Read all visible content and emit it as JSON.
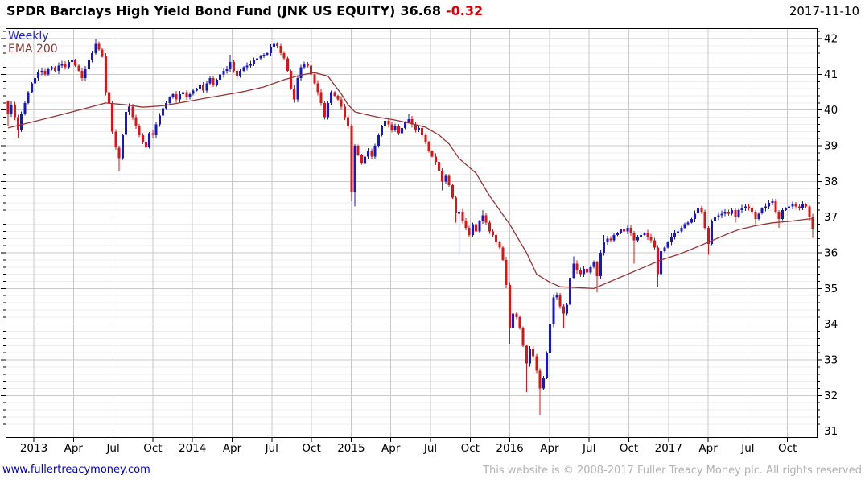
{
  "header": {
    "title": "SPDR Barclays High Yield Bond Fund (JNK US EQUITY)",
    "last_price": "36.68",
    "change": "-0.32",
    "date": "2017-11-10"
  },
  "legend": {
    "timeframe": "Weekly",
    "overlay": "EMA 200"
  },
  "footer": {
    "website": "www.fullertreacymoney.com",
    "copyright": "This website is © 2008-2017 Fuller Treacy Money plc. All rights reserved"
  },
  "chart_data": {
    "type": "candlestick",
    "title": "SPDR Barclays High Yield Bond Fund (JNK US EQUITY)",
    "timeframe": "Weekly",
    "overlay": "EMA 200",
    "as_of_date": "2017-11-10",
    "last_close": 36.68,
    "change": -0.32,
    "y_axis": {
      "min": 31,
      "max": 42,
      "major_step": 1,
      "minor_step": 0.2,
      "side": "right",
      "tick_labels": [
        "31",
        "32",
        "33",
        "34",
        "35",
        "36",
        "37",
        "38",
        "39",
        "40",
        "41",
        "42"
      ]
    },
    "x_axis": {
      "tick_labels": [
        "2013",
        "Apr",
        "Jul",
        "Oct",
        "2014",
        "Apr",
        "Jul",
        "Oct",
        "2015",
        "Apr",
        "Jul",
        "Oct",
        "2016",
        "Apr",
        "Jul",
        "Oct",
        "2017",
        "Apr",
        "Jul",
        "Oct"
      ],
      "range_note": "weekly bars, Nov 2012 - 10 Nov 2017"
    },
    "colors": {
      "up": "#1717c3",
      "down": "#e31212",
      "ema": "#993434",
      "grid_major": "#c9c9c9",
      "grid_minor": "#ededed",
      "axis": "#000000"
    },
    "grid": {
      "horizontal_major": true,
      "horizontal_minor": true,
      "vertical_quarterly": true
    },
    "series": {
      "name": "JNK US EQUITY weekly OHLC (values estimated from chart)",
      "first_open": 40.25,
      "default_wick": 0.07,
      "closes": [
        39.9,
        40.15,
        39.8,
        39.45,
        39.9,
        40.2,
        40.5,
        40.75,
        40.9,
        41.05,
        41.1,
        41.0,
        41.15,
        41.2,
        41.1,
        41.25,
        41.3,
        41.2,
        41.35,
        41.4,
        41.25,
        41.1,
        40.9,
        41.15,
        41.4,
        41.6,
        41.85,
        41.7,
        41.5,
        40.5,
        40.2,
        39.4,
        38.95,
        38.65,
        39.3,
        39.95,
        40.1,
        39.8,
        39.55,
        39.3,
        39.1,
        38.95,
        39.35,
        39.3,
        39.6,
        39.85,
        40.05,
        40.2,
        40.35,
        40.45,
        40.3,
        40.45,
        40.5,
        40.35,
        40.45,
        40.55,
        40.6,
        40.7,
        40.55,
        40.75,
        40.9,
        40.7,
        40.85,
        41.0,
        41.1,
        41.15,
        41.35,
        41.1,
        40.95,
        41.1,
        41.2,
        41.25,
        41.3,
        41.4,
        41.45,
        41.5,
        41.55,
        41.6,
        41.75,
        41.85,
        41.8,
        41.6,
        41.45,
        41.1,
        40.6,
        40.3,
        40.9,
        41.2,
        41.3,
        41.25,
        41.0,
        40.75,
        40.5,
        40.2,
        39.8,
        40.2,
        40.5,
        40.4,
        40.3,
        40.1,
        39.8,
        39.55,
        37.7,
        39.0,
        38.75,
        38.5,
        38.7,
        38.85,
        38.7,
        39.0,
        39.3,
        39.55,
        39.7,
        39.6,
        39.45,
        39.55,
        39.35,
        39.5,
        39.65,
        39.75,
        39.6,
        39.45,
        39.5,
        39.3,
        39.1,
        38.85,
        38.7,
        38.55,
        38.3,
        38.0,
        38.15,
        37.9,
        37.55,
        37.1,
        37.15,
        36.9,
        36.7,
        36.5,
        36.8,
        36.6,
        36.9,
        37.05,
        36.85,
        36.6,
        36.5,
        36.3,
        36.15,
        35.8,
        35.1,
        33.9,
        34.3,
        34.2,
        33.9,
        33.4,
        32.9,
        33.3,
        33.1,
        32.7,
        32.2,
        32.5,
        33.2,
        34.0,
        34.75,
        34.8,
        34.5,
        34.3,
        34.55,
        35.3,
        35.7,
        35.5,
        35.4,
        35.55,
        35.45,
        35.6,
        35.75,
        35.35,
        36.0,
        36.3,
        36.4,
        36.35,
        36.5,
        36.55,
        36.65,
        36.6,
        36.7,
        36.55,
        36.35,
        36.45,
        36.5,
        36.55,
        36.45,
        36.35,
        36.15,
        35.4,
        36.05,
        36.15,
        36.3,
        36.45,
        36.55,
        36.6,
        36.7,
        36.8,
        36.85,
        36.95,
        37.1,
        37.25,
        37.15,
        36.7,
        36.25,
        36.9,
        37.0,
        37.05,
        37.1,
        37.15,
        37.1,
        37.2,
        37.0,
        37.2,
        37.25,
        37.3,
        37.25,
        37.15,
        36.95,
        37.1,
        37.25,
        37.3,
        37.4,
        37.45,
        37.15,
        36.95,
        37.2,
        37.25,
        37.3,
        37.35,
        37.3,
        37.25,
        37.35,
        37.3,
        37.0,
        36.68
      ],
      "low_overrides": {
        "0": 39.55,
        "3": 39.2,
        "33": 38.3,
        "41": 38.8,
        "102": 37.45,
        "103": 37.3,
        "129": 37.75,
        "133": 36.85,
        "134": 36.0,
        "149": 33.45,
        "154": 32.1,
        "158": 31.45,
        "165": 33.9,
        "175": 34.9,
        "186": 35.7,
        "193": 35.05,
        "208": 35.95,
        "216": 36.85,
        "222": 36.8,
        "229": 36.7,
        "238": 36.9,
        "239": 36.42
      },
      "high_overrides": {
        "26": 42.0,
        "27": 41.92,
        "66": 41.55,
        "79": 41.95,
        "80": 41.9,
        "112": 39.85,
        "119": 39.9,
        "141": 37.2,
        "168": 35.9,
        "177": 36.5,
        "205": 37.35,
        "227": 37.52,
        "236": 37.45
      }
    },
    "ema": {
      "name": "EMA 200",
      "points": [
        [
          0,
          39.5
        ],
        [
          12,
          39.78
        ],
        [
          22,
          40.02
        ],
        [
          29,
          40.2
        ],
        [
          35,
          40.15
        ],
        [
          40,
          40.08
        ],
        [
          46,
          40.12
        ],
        [
          52,
          40.22
        ],
        [
          58,
          40.32
        ],
        [
          64,
          40.42
        ],
        [
          70,
          40.52
        ],
        [
          76,
          40.65
        ],
        [
          82,
          40.85
        ],
        [
          87,
          40.98
        ],
        [
          91,
          41.05
        ],
        [
          95,
          40.95
        ],
        [
          99,
          40.45
        ],
        [
          101,
          40.15
        ],
        [
          103,
          39.95
        ],
        [
          106,
          39.88
        ],
        [
          110,
          39.8
        ],
        [
          115,
          39.72
        ],
        [
          120,
          39.62
        ],
        [
          124,
          39.52
        ],
        [
          128,
          39.3
        ],
        [
          131,
          39.05
        ],
        [
          134,
          38.64
        ],
        [
          139,
          38.23
        ],
        [
          143,
          37.6
        ],
        [
          149,
          36.8
        ],
        [
          154,
          36.0
        ],
        [
          157,
          35.4
        ],
        [
          161,
          35.17
        ],
        [
          164,
          35.05
        ],
        [
          174,
          35.0
        ],
        [
          179,
          35.2
        ],
        [
          184,
          35.4
        ],
        [
          189,
          35.6
        ],
        [
          194,
          35.8
        ],
        [
          199,
          35.95
        ],
        [
          203,
          36.1
        ],
        [
          208,
          36.3
        ],
        [
          213,
          36.5
        ],
        [
          217,
          36.65
        ],
        [
          222,
          36.76
        ],
        [
          227,
          36.84
        ],
        [
          232,
          36.88
        ],
        [
          238,
          36.95
        ],
        [
          239,
          36.95
        ]
      ]
    }
  }
}
